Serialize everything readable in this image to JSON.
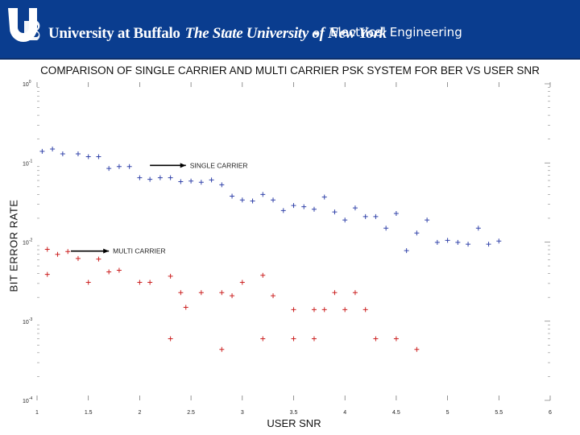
{
  "header": {
    "university": "University at Buffalo",
    "tagline": "The State University of New York",
    "bullet": "•",
    "department": "Electrical Engineering"
  },
  "colors": {
    "banner": "#0a3d8f",
    "single_series": "#3344aa",
    "multi_series": "#cc2222"
  },
  "chart_data": {
    "type": "scatter",
    "title": "COMPARISON OF SINGLE CARRIER AND MULTI CARRIER PSK SYSTEM FOR BER VS USER SNR",
    "xlabel": "USER SNR",
    "ylabel": "BIT ERROR RATE",
    "xlim": [
      1,
      6
    ],
    "ylim": [
      0.0001,
      1
    ],
    "yscale": "log",
    "grid": false,
    "xticks": [
      "1",
      "1.5",
      "2",
      "2.5",
      "3",
      "3.5",
      "4",
      "4.5",
      "5",
      "5.5",
      "6"
    ],
    "yticks": [
      {
        "base": "10",
        "exp": "0",
        "value": 1
      },
      {
        "base": "10",
        "exp": "-1",
        "value": 0.1
      },
      {
        "base": "10",
        "exp": "-2",
        "value": 0.01
      },
      {
        "base": "10",
        "exp": "-3",
        "value": 0.001
      },
      {
        "base": "10",
        "exp": "-4",
        "value": 0.0001
      }
    ],
    "annotations": [
      {
        "text": "SINGLE CARRIER",
        "arrow_from": [
          2.1,
          0.093
        ],
        "arrow_to": [
          2.45,
          0.093
        ]
      },
      {
        "text": "MULTI CARRIER",
        "arrow_from": [
          1.33,
          0.0077
        ],
        "arrow_to": [
          1.7,
          0.0077
        ]
      }
    ],
    "series": [
      {
        "name": "SINGLE CARRIER",
        "marker": "+",
        "points": [
          [
            1.05,
            0.14
          ],
          [
            1.15,
            0.15
          ],
          [
            1.25,
            0.13
          ],
          [
            1.4,
            0.13
          ],
          [
            1.5,
            0.12
          ],
          [
            1.6,
            0.12
          ],
          [
            1.7,
            0.085
          ],
          [
            1.8,
            0.09
          ],
          [
            1.9,
            0.09
          ],
          [
            2.0,
            0.065
          ],
          [
            2.1,
            0.062
          ],
          [
            2.2,
            0.065
          ],
          [
            2.3,
            0.065
          ],
          [
            2.4,
            0.058
          ],
          [
            2.5,
            0.059
          ],
          [
            2.6,
            0.057
          ],
          [
            2.7,
            0.061
          ],
          [
            2.8,
            0.053
          ],
          [
            2.9,
            0.038
          ],
          [
            3.0,
            0.034
          ],
          [
            3.1,
            0.033
          ],
          [
            3.2,
            0.04
          ],
          [
            3.3,
            0.034
          ],
          [
            3.4,
            0.025
          ],
          [
            3.5,
            0.029
          ],
          [
            3.6,
            0.028
          ],
          [
            3.7,
            0.026
          ],
          [
            3.8,
            0.037
          ],
          [
            3.9,
            0.024
          ],
          [
            4.0,
            0.019
          ],
          [
            4.1,
            0.027
          ],
          [
            4.2,
            0.021
          ],
          [
            4.3,
            0.021
          ],
          [
            4.4,
            0.015
          ],
          [
            4.5,
            0.023
          ],
          [
            4.6,
            0.0078
          ],
          [
            4.7,
            0.013
          ],
          [
            4.8,
            0.019
          ],
          [
            4.9,
            0.0099
          ],
          [
            5.0,
            0.0105
          ],
          [
            5.1,
            0.0099
          ],
          [
            5.2,
            0.0094
          ],
          [
            5.3,
            0.015
          ],
          [
            5.4,
            0.0094
          ],
          [
            5.5,
            0.0103
          ]
        ]
      },
      {
        "name": "MULTI CARRIER",
        "marker": "+",
        "points": [
          [
            1.1,
            0.0081
          ],
          [
            1.2,
            0.007
          ],
          [
            1.3,
            0.0076
          ],
          [
            1.4,
            0.0062
          ],
          [
            1.1,
            0.0039
          ],
          [
            1.5,
            0.0031
          ],
          [
            1.6,
            0.0061
          ],
          [
            1.7,
            0.0042
          ],
          [
            1.8,
            0.0044
          ],
          [
            2.0,
            0.0031
          ],
          [
            2.1,
            0.0031
          ],
          [
            2.3,
            0.0037
          ],
          [
            2.4,
            0.0023
          ],
          [
            2.45,
            0.0015
          ],
          [
            2.6,
            0.0023
          ],
          [
            2.8,
            0.0023
          ],
          [
            2.9,
            0.0021
          ],
          [
            3.0,
            0.0031
          ],
          [
            3.2,
            0.0038
          ],
          [
            3.3,
            0.0021
          ],
          [
            3.5,
            0.0014
          ],
          [
            3.7,
            0.0014
          ],
          [
            3.8,
            0.0014
          ],
          [
            3.9,
            0.0023
          ],
          [
            4.0,
            0.0014
          ],
          [
            4.1,
            0.0023
          ],
          [
            4.2,
            0.0014
          ],
          [
            2.3,
            0.0006
          ],
          [
            2.8,
            0.00044
          ],
          [
            3.2,
            0.0006
          ],
          [
            3.5,
            0.0006
          ],
          [
            3.7,
            0.0006
          ],
          [
            4.3,
            0.0006
          ],
          [
            4.5,
            0.0006
          ],
          [
            4.7,
            0.00044
          ]
        ]
      }
    ]
  }
}
